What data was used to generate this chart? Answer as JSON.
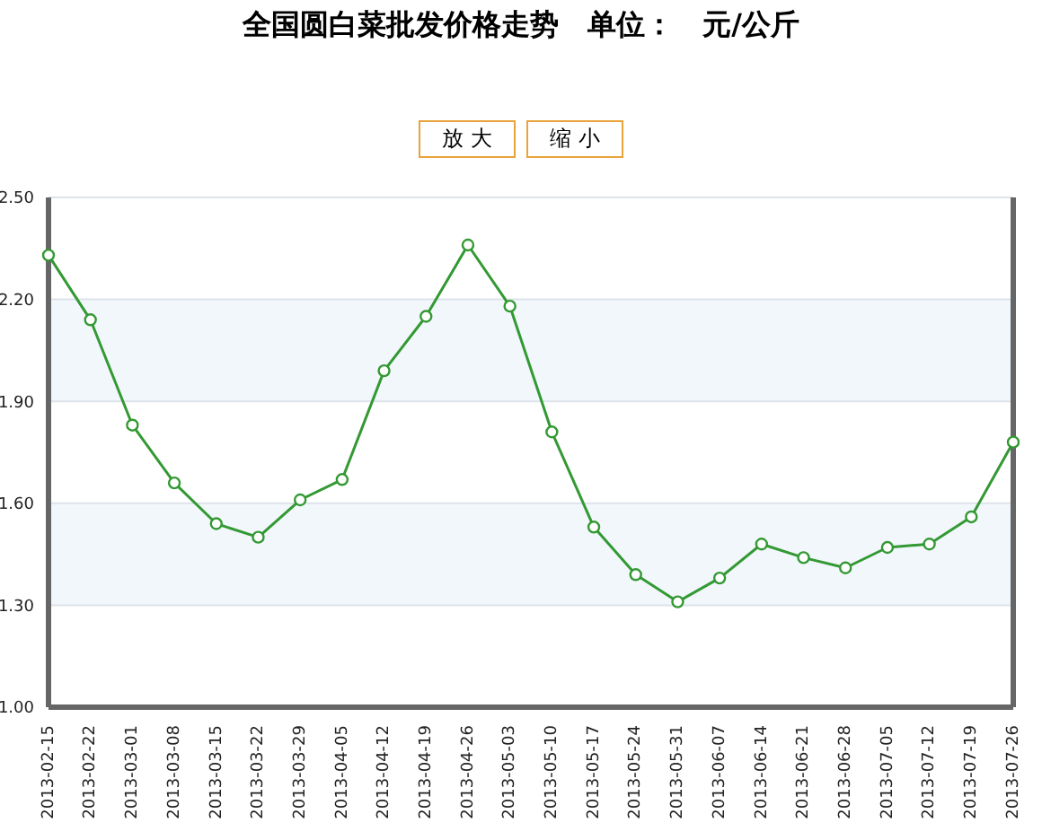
{
  "chart_data": {
    "type": "line",
    "title": "全国圆白菜批发价格走势　单位：　元/公斤",
    "annotations": [
      "放 大",
      "缩 小"
    ],
    "categories": [
      "2013-02-15",
      "2013-02-22",
      "2013-03-01",
      "2013-03-08",
      "2013-03-15",
      "2013-03-22",
      "2013-03-29",
      "2013-04-05",
      "2013-04-12",
      "2013-04-19",
      "2013-04-26",
      "2013-05-03",
      "2013-05-10",
      "2013-05-17",
      "2013-05-24",
      "2013-05-31",
      "2013-06-07",
      "2013-06-14",
      "2013-06-21",
      "2013-06-28",
      "2013-07-05",
      "2013-07-12",
      "2013-07-19",
      "2013-07-26"
    ],
    "series": [
      {
        "color": "#339933",
        "values": [
          2.33,
          2.14,
          1.83,
          1.66,
          1.54,
          1.5,
          1.61,
          1.67,
          1.99,
          2.15,
          2.36,
          2.18,
          1.81,
          1.53,
          1.39,
          1.31,
          1.38,
          1.48,
          1.44,
          1.41,
          1.47,
          1.48,
          1.56,
          1.78
        ]
      }
    ],
    "ylim": [
      1.0,
      2.5
    ],
    "yticks": [
      {
        "value": 1.0,
        "label": "1.00"
      },
      {
        "value": 1.3,
        "label": "1.30"
      },
      {
        "value": 1.6,
        "label": "1.60"
      },
      {
        "value": 1.9,
        "label": "1.90"
      },
      {
        "value": 2.2,
        "label": "2.20"
      },
      {
        "value": 2.5,
        "label": "2.50"
      }
    ],
    "grid": "y",
    "legend": false,
    "marker": "circle",
    "line_style": "solid"
  }
}
